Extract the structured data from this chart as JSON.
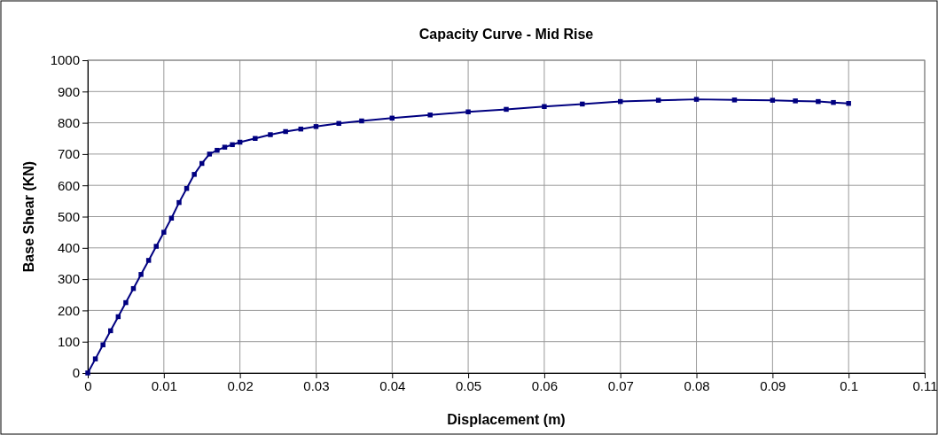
{
  "chart_data": {
    "type": "line",
    "title": "Capacity Curve - Mid Rise",
    "xlabel": "Displacement (m)",
    "ylabel": "Base Shear (KN)",
    "series": [
      {
        "color": "#000080",
        "x": [
          0,
          0.001,
          0.002,
          0.003,
          0.004,
          0.005,
          0.006,
          0.007,
          0.008,
          0.009,
          0.01,
          0.011,
          0.012,
          0.013,
          0.014,
          0.015,
          0.016,
          0.017,
          0.018,
          0.019,
          0.02,
          0.022,
          0.024,
          0.026,
          0.028,
          0.03,
          0.033,
          0.036,
          0.04,
          0.045,
          0.05,
          0.055,
          0.06,
          0.065,
          0.07,
          0.075,
          0.08,
          0.085,
          0.09,
          0.093,
          0.096,
          0.098,
          0.1
        ],
        "values": [
          0,
          45,
          90,
          135,
          180,
          225,
          270,
          315,
          360,
          405,
          450,
          495,
          545,
          590,
          635,
          670,
          700,
          712,
          722,
          730,
          738,
          750,
          762,
          772,
          780,
          788,
          798,
          806,
          815,
          825,
          835,
          843,
          852,
          860,
          868,
          872,
          875,
          873,
          872,
          870,
          868,
          865,
          862
        ]
      }
    ],
    "xlim": [
      0,
      0.11
    ],
    "xticks": [
      0,
      0.01,
      0.02,
      0.03,
      0.04,
      0.05,
      0.06,
      0.07,
      0.08,
      0.09,
      0.1,
      0.11
    ],
    "ylim": [
      0,
      1000
    ],
    "yticks": [
      0,
      100,
      200,
      300,
      400,
      500,
      600,
      700,
      800,
      900,
      1000
    ],
    "grid": true,
    "marker": "square",
    "line_style": "solid"
  }
}
